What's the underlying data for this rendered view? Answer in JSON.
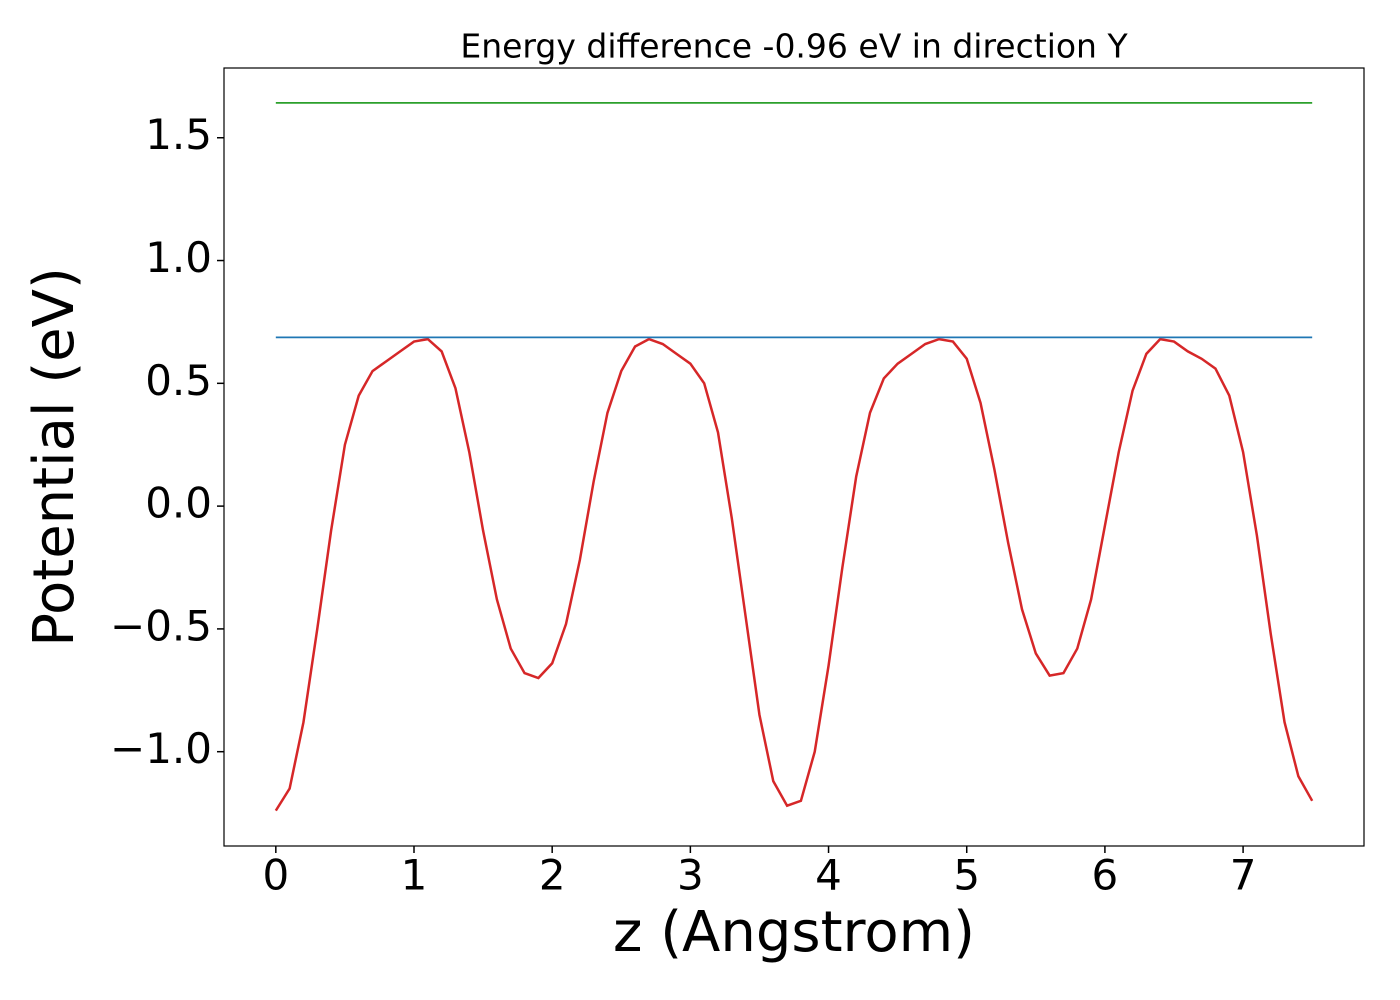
{
  "chart_data": {
    "type": "line",
    "title": "Energy difference -0.96 eV in direction Y",
    "xlabel": "z (Angstrom)",
    "ylabel": "Potential (eV)",
    "xlim": [
      -0.375,
      7.875
    ],
    "ylim": [
      -1.384,
      1.784
    ],
    "xticks": [
      0,
      1,
      2,
      3,
      4,
      5,
      6,
      7
    ],
    "yticks": [
      {
        "value": -1.0,
        "label": "−1.0"
      },
      {
        "value": -0.5,
        "label": "−0.5"
      },
      {
        "value": 0.0,
        "label": "0.0"
      },
      {
        "value": 0.5,
        "label": "0.5"
      },
      {
        "value": 1.0,
        "label": "1.0"
      },
      {
        "value": 1.5,
        "label": "1.5"
      }
    ],
    "series": [
      {
        "color": "#d62728",
        "x": [
          0,
          0.1,
          0.2,
          0.3,
          0.4,
          0.5,
          0.6,
          0.7,
          0.8,
          0.9,
          1,
          1.1,
          1.2,
          1.3,
          1.4,
          1.5,
          1.6,
          1.7,
          1.8,
          1.9,
          2,
          2.1,
          2.2,
          2.3,
          2.4,
          2.5,
          2.6,
          2.7,
          2.8,
          2.9,
          3,
          3.1,
          3.2,
          3.3,
          3.4,
          3.5,
          3.6,
          3.7,
          3.8,
          3.9,
          4,
          4.1,
          4.2,
          4.3,
          4.4,
          4.5,
          4.6,
          4.7,
          4.8,
          4.9,
          5,
          5.1,
          5.2,
          5.3,
          5.4,
          5.5,
          5.6,
          5.7,
          5.8,
          5.9,
          6,
          6.1,
          6.2,
          6.3,
          6.4,
          6.5,
          6.6,
          6.7,
          6.8,
          6.9,
          7,
          7.1,
          7.2,
          7.3,
          7.4,
          7.5
        ],
        "values": [
          -1.24,
          -1.15,
          -0.88,
          -0.5,
          -0.1,
          0.25,
          0.45,
          0.55,
          0.59,
          0.63,
          0.67,
          0.68,
          0.63,
          0.48,
          0.22,
          -0.1,
          -0.38,
          -0.58,
          -0.68,
          -0.7,
          -0.64,
          -0.48,
          -0.22,
          0.1,
          0.38,
          0.55,
          0.65,
          0.68,
          0.66,
          0.62,
          0.58,
          0.5,
          0.3,
          -0.05,
          -0.45,
          -0.85,
          -1.12,
          -1.22,
          -1.2,
          -1.0,
          -0.65,
          -0.25,
          0.12,
          0.38,
          0.52,
          0.58,
          0.62,
          0.66,
          0.68,
          0.67,
          0.6,
          0.42,
          0.15,
          -0.15,
          -0.42,
          -0.6,
          -0.69,
          -0.68,
          -0.58,
          -0.38,
          -0.08,
          0.22,
          0.47,
          0.62,
          0.68,
          0.67,
          0.63,
          0.6,
          0.56,
          0.45,
          0.22,
          -0.12,
          -0.52,
          -0.88,
          -1.1,
          -1.2
        ]
      },
      {
        "color": "#1f77b4",
        "x": [
          0,
          7.5
        ],
        "values": [
          0.687,
          0.687
        ]
      },
      {
        "color": "#2ca02c",
        "x": [
          0,
          7.5
        ],
        "values": [
          1.642,
          1.642
        ]
      }
    ]
  }
}
